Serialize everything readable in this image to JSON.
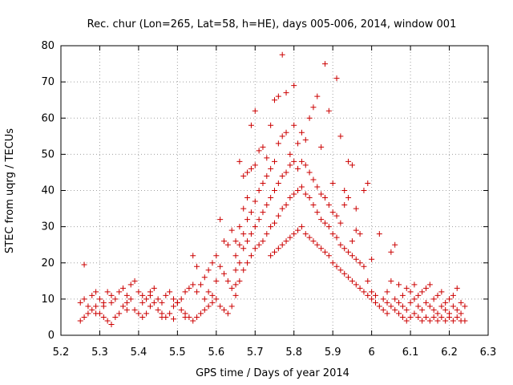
{
  "chart_data": {
    "type": "scatter",
    "title": "Rec. chur (Lon=265, Lat=58, h=HE), days 005-006, 2014, window 001",
    "xlabel": "GPS time / Days of year 2014",
    "ylabel": "STEC from uqrg / TECUs",
    "xlim": [
      5.2,
      6.3
    ],
    "ylim": [
      0,
      80
    ],
    "x_ticks": [
      "5.2",
      "5.3",
      "5.4",
      "5.5",
      "5.6",
      "5.7",
      "5.8",
      "5.9",
      "6",
      "6.1",
      "6.2",
      "6.3"
    ],
    "y_ticks": [
      "0",
      "10",
      "20",
      "30",
      "40",
      "50",
      "60",
      "70",
      "80"
    ],
    "grid": true,
    "marker": "+",
    "color": "#cc0000",
    "series": [
      {
        "name": "",
        "points": [
          [
            5.25,
            4
          ],
          [
            5.26,
            5
          ],
          [
            5.27,
            6
          ],
          [
            5.28,
            7
          ],
          [
            5.29,
            8
          ],
          [
            5.3,
            6
          ],
          [
            5.31,
            5
          ],
          [
            5.32,
            4
          ],
          [
            5.33,
            3
          ],
          [
            5.34,
            5
          ],
          [
            5.35,
            6
          ],
          [
            5.36,
            8
          ],
          [
            5.37,
            9
          ],
          [
            5.38,
            10
          ],
          [
            5.39,
            7
          ],
          [
            5.4,
            6
          ],
          [
            5.41,
            5
          ],
          [
            5.42,
            6
          ],
          [
            5.43,
            8
          ],
          [
            5.44,
            9
          ],
          [
            5.45,
            7
          ],
          [
            5.46,
            6
          ],
          [
            5.47,
            5
          ],
          [
            5.48,
            6
          ],
          [
            5.49,
            8
          ],
          [
            5.5,
            9
          ],
          [
            5.51,
            7
          ],
          [
            5.52,
            6
          ],
          [
            5.53,
            5
          ],
          [
            5.54,
            4
          ],
          [
            5.25,
            9
          ],
          [
            5.26,
            10
          ],
          [
            5.27,
            8
          ],
          [
            5.28,
            11
          ],
          [
            5.29,
            12
          ],
          [
            5.3,
            10
          ],
          [
            5.31,
            9
          ],
          [
            5.32,
            12
          ],
          [
            5.33,
            11
          ],
          [
            5.34,
            10
          ],
          [
            5.35,
            12
          ],
          [
            5.36,
            13
          ],
          [
            5.37,
            11
          ],
          [
            5.38,
            14
          ],
          [
            5.39,
            15
          ],
          [
            5.4,
            12
          ],
          [
            5.41,
            11
          ],
          [
            5.42,
            10
          ],
          [
            5.43,
            12
          ],
          [
            5.44,
            13
          ],
          [
            5.45,
            10
          ],
          [
            5.46,
            9
          ],
          [
            5.47,
            11
          ],
          [
            5.48,
            12
          ],
          [
            5.49,
            10
          ],
          [
            5.5,
            9
          ],
          [
            5.51,
            10
          ],
          [
            5.52,
            12
          ],
          [
            5.53,
            13
          ],
          [
            5.54,
            14
          ],
          [
            5.26,
            19.5
          ],
          [
            5.29,
            6
          ],
          [
            5.31,
            8
          ],
          [
            5.33,
            9
          ],
          [
            5.37,
            7
          ],
          [
            5.41,
            9
          ],
          [
            5.43,
            11
          ],
          [
            5.46,
            5
          ],
          [
            5.49,
            4.5
          ],
          [
            5.52,
            5
          ],
          [
            5.55,
            5
          ],
          [
            5.56,
            6
          ],
          [
            5.57,
            7
          ],
          [
            5.58,
            8
          ],
          [
            5.59,
            9
          ],
          [
            5.6,
            10
          ],
          [
            5.61,
            8
          ],
          [
            5.62,
            7
          ],
          [
            5.63,
            6
          ],
          [
            5.64,
            8
          ],
          [
            5.55,
            12
          ],
          [
            5.56,
            14
          ],
          [
            5.57,
            16
          ],
          [
            5.58,
            18
          ],
          [
            5.59,
            20
          ],
          [
            5.6,
            22
          ],
          [
            5.61,
            19
          ],
          [
            5.62,
            17
          ],
          [
            5.63,
            15
          ],
          [
            5.64,
            13
          ],
          [
            5.54,
            22
          ],
          [
            5.55,
            19
          ],
          [
            5.57,
            10
          ],
          [
            5.58,
            12
          ],
          [
            5.59,
            11
          ],
          [
            5.6,
            15
          ],
          [
            5.61,
            32
          ],
          [
            5.62,
            26
          ],
          [
            5.63,
            25
          ],
          [
            5.64,
            29
          ],
          [
            5.65,
            11
          ],
          [
            5.65,
            14
          ],
          [
            5.65,
            18
          ],
          [
            5.65,
            22
          ],
          [
            5.65,
            26
          ],
          [
            5.66,
            15
          ],
          [
            5.66,
            20
          ],
          [
            5.66,
            25
          ],
          [
            5.66,
            30
          ],
          [
            5.66,
            48
          ],
          [
            5.67,
            18
          ],
          [
            5.67,
            24
          ],
          [
            5.67,
            28
          ],
          [
            5.67,
            35
          ],
          [
            5.67,
            44
          ],
          [
            5.68,
            20
          ],
          [
            5.68,
            26
          ],
          [
            5.68,
            32
          ],
          [
            5.68,
            38
          ],
          [
            5.68,
            45
          ],
          [
            5.69,
            22
          ],
          [
            5.69,
            28
          ],
          [
            5.69,
            34
          ],
          [
            5.69,
            46
          ],
          [
            5.69,
            58
          ],
          [
            5.7,
            24
          ],
          [
            5.7,
            30
          ],
          [
            5.7,
            37
          ],
          [
            5.7,
            47
          ],
          [
            5.7,
            62
          ],
          [
            5.71,
            25
          ],
          [
            5.71,
            32
          ],
          [
            5.71,
            40
          ],
          [
            5.71,
            51
          ],
          [
            5.72,
            26
          ],
          [
            5.72,
            34
          ],
          [
            5.72,
            42
          ],
          [
            5.72,
            52
          ],
          [
            5.73,
            28
          ],
          [
            5.73,
            36
          ],
          [
            5.73,
            44
          ],
          [
            5.73,
            49
          ],
          [
            5.74,
            22
          ],
          [
            5.74,
            30
          ],
          [
            5.74,
            38
          ],
          [
            5.74,
            46
          ],
          [
            5.74,
            58
          ],
          [
            5.75,
            23
          ],
          [
            5.75,
            31
          ],
          [
            5.75,
            40
          ],
          [
            5.75,
            48
          ],
          [
            5.75,
            65
          ],
          [
            5.76,
            24
          ],
          [
            5.76,
            33
          ],
          [
            5.76,
            42
          ],
          [
            5.76,
            53
          ],
          [
            5.76,
            66
          ],
          [
            5.77,
            25
          ],
          [
            5.77,
            35
          ],
          [
            5.77,
            44
          ],
          [
            5.77,
            55
          ],
          [
            5.77,
            77.5
          ],
          [
            5.78,
            26
          ],
          [
            5.78,
            36
          ],
          [
            5.78,
            45
          ],
          [
            5.78,
            56
          ],
          [
            5.78,
            67
          ],
          [
            5.79,
            27
          ],
          [
            5.79,
            38
          ],
          [
            5.79,
            47
          ],
          [
            5.79,
            50
          ],
          [
            5.8,
            28
          ],
          [
            5.8,
            39
          ],
          [
            5.8,
            48
          ],
          [
            5.8,
            58
          ],
          [
            5.8,
            69
          ],
          [
            5.81,
            29
          ],
          [
            5.81,
            40
          ],
          [
            5.81,
            46
          ],
          [
            5.81,
            53
          ],
          [
            5.82,
            30
          ],
          [
            5.82,
            41
          ],
          [
            5.82,
            48
          ],
          [
            5.82,
            56
          ],
          [
            5.83,
            28
          ],
          [
            5.83,
            39
          ],
          [
            5.83,
            47
          ],
          [
            5.83,
            54
          ],
          [
            5.84,
            27
          ],
          [
            5.84,
            38
          ],
          [
            5.84,
            45
          ],
          [
            5.84,
            60
          ],
          [
            5.85,
            26
          ],
          [
            5.85,
            36
          ],
          [
            5.85,
            43
          ],
          [
            5.85,
            63
          ],
          [
            5.86,
            25
          ],
          [
            5.86,
            34
          ],
          [
            5.86,
            41
          ],
          [
            5.86,
            66
          ],
          [
            5.87,
            24
          ],
          [
            5.87,
            32
          ],
          [
            5.87,
            39
          ],
          [
            5.87,
            52
          ],
          [
            5.88,
            23
          ],
          [
            5.88,
            31
          ],
          [
            5.88,
            38
          ],
          [
            5.88,
            75
          ],
          [
            5.89,
            22
          ],
          [
            5.89,
            30
          ],
          [
            5.89,
            36
          ],
          [
            5.89,
            62
          ],
          [
            5.9,
            20
          ],
          [
            5.9,
            28
          ],
          [
            5.9,
            34
          ],
          [
            5.9,
            42
          ],
          [
            5.91,
            19
          ],
          [
            5.91,
            27
          ],
          [
            5.91,
            33
          ],
          [
            5.91,
            71
          ],
          [
            5.92,
            18
          ],
          [
            5.92,
            25
          ],
          [
            5.92,
            31
          ],
          [
            5.92,
            55
          ],
          [
            5.93,
            17
          ],
          [
            5.93,
            24
          ],
          [
            5.93,
            36
          ],
          [
            5.93,
            40
          ],
          [
            5.94,
            16
          ],
          [
            5.94,
            23
          ],
          [
            5.94,
            38
          ],
          [
            5.94,
            48
          ],
          [
            5.95,
            15
          ],
          [
            5.95,
            22
          ],
          [
            5.95,
            26
          ],
          [
            5.95,
            47
          ],
          [
            5.96,
            14
          ],
          [
            5.96,
            21
          ],
          [
            5.96,
            29
          ],
          [
            5.96,
            35
          ],
          [
            5.97,
            13
          ],
          [
            5.97,
            20
          ],
          [
            5.97,
            28
          ],
          [
            5.98,
            12
          ],
          [
            5.98,
            19
          ],
          [
            5.98,
            40
          ],
          [
            5.99,
            11
          ],
          [
            5.99,
            15
          ],
          [
            5.99,
            42
          ],
          [
            6.0,
            10
          ],
          [
            6.0,
            12
          ],
          [
            6.0,
            21
          ],
          [
            6.01,
            9
          ],
          [
            6.01,
            11
          ],
          [
            6.02,
            8
          ],
          [
            6.02,
            28
          ],
          [
            6.03,
            7
          ],
          [
            6.03,
            10
          ],
          [
            6.04,
            6
          ],
          [
            6.04,
            9
          ],
          [
            6.04,
            12
          ],
          [
            6.05,
            8
          ],
          [
            6.05,
            15
          ],
          [
            6.05,
            23
          ],
          [
            6.06,
            7
          ],
          [
            6.06,
            10
          ],
          [
            6.06,
            25
          ],
          [
            6.07,
            6
          ],
          [
            6.07,
            9
          ],
          [
            6.07,
            14
          ],
          [
            6.08,
            5
          ],
          [
            6.08,
            8
          ],
          [
            6.08,
            11
          ],
          [
            6.09,
            4
          ],
          [
            6.09,
            7
          ],
          [
            6.09,
            13
          ],
          [
            6.1,
            5
          ],
          [
            6.1,
            9
          ],
          [
            6.1,
            12
          ],
          [
            6.11,
            6
          ],
          [
            6.11,
            10
          ],
          [
            6.11,
            14
          ],
          [
            6.12,
            5
          ],
          [
            6.12,
            8
          ],
          [
            6.12,
            11
          ],
          [
            6.13,
            4
          ],
          [
            6.13,
            7
          ],
          [
            6.13,
            12
          ],
          [
            6.14,
            5
          ],
          [
            6.14,
            9
          ],
          [
            6.14,
            13
          ],
          [
            6.15,
            4
          ],
          [
            6.15,
            8
          ],
          [
            6.15,
            14
          ],
          [
            6.16,
            5
          ],
          [
            6.16,
            7
          ],
          [
            6.16,
            10
          ],
          [
            6.17,
            4
          ],
          [
            6.17,
            6
          ],
          [
            6.17,
            11
          ],
          [
            6.18,
            5
          ],
          [
            6.18,
            8
          ],
          [
            6.18,
            12
          ],
          [
            6.19,
            4
          ],
          [
            6.19,
            7
          ],
          [
            6.19,
            9
          ],
          [
            6.2,
            5
          ],
          [
            6.2,
            6
          ],
          [
            6.2,
            10
          ],
          [
            6.21,
            4
          ],
          [
            6.21,
            8
          ],
          [
            6.21,
            11
          ],
          [
            6.22,
            5
          ],
          [
            6.22,
            7
          ],
          [
            6.22,
            13
          ],
          [
            6.23,
            4
          ],
          [
            6.23,
            6
          ],
          [
            6.23,
            9
          ],
          [
            6.24,
            4
          ],
          [
            6.24,
            8
          ]
        ]
      }
    ]
  }
}
